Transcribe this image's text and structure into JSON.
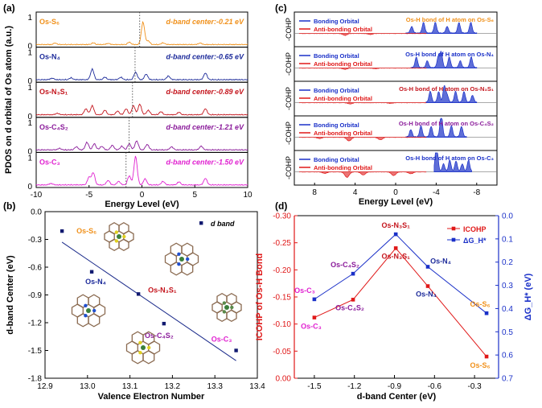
{
  "panel_labels": [
    "(a)",
    "(b)",
    "(c)",
    "(d)"
  ],
  "colors": {
    "os_s6": "#f0901a",
    "os_n4": "#1c2a9a",
    "os_n3s1": "#c4141c",
    "os_c4s2": "#8a1a9a",
    "os_c3": "#e020d0",
    "bonding": "#1a30c8",
    "antibonding": "#e01818",
    "icohp": "#e01818",
    "dgh": "#1a30c8"
  },
  "chart_data": [
    {
      "panel": "(a)",
      "type": "line",
      "ylabel": "PDOS on d orbital of Os atom (a.u.)",
      "xlabel": "Energy Level (eV)",
      "xlim": [
        -10,
        10
      ],
      "x_ticks": [
        "-10",
        "-5",
        "0",
        "5",
        "10"
      ],
      "y_ticks": [
        "0",
        "1"
      ],
      "subplots": [
        {
          "name": "Os-S6",
          "label": "Os-S₆",
          "center_text": "d-band center:-0.21 eV",
          "center": -0.21,
          "color_key": "os_s6",
          "peaks": [
            [
              -8.2,
              0.05
            ],
            [
              -4.6,
              0.06
            ],
            [
              -3.2,
              0.04
            ],
            [
              -1.2,
              0.08
            ],
            [
              0.1,
              0.75
            ],
            [
              0.6,
              0.12
            ],
            [
              2.0,
              0.06
            ],
            [
              5.5,
              0.05
            ]
          ]
        },
        {
          "name": "Os-N4",
          "label": "Os-N₄",
          "center_text": "d-band center:-0.65 eV",
          "center": -0.65,
          "color_key": "os_n4",
          "peaks": [
            [
              -8.5,
              0.05
            ],
            [
              -6.7,
              0.06
            ],
            [
              -4.7,
              0.35
            ],
            [
              -3.5,
              0.08
            ],
            [
              -2.0,
              0.08
            ],
            [
              -0.6,
              0.25
            ],
            [
              0.4,
              0.18
            ],
            [
              2.5,
              0.12
            ],
            [
              6.0,
              0.22
            ]
          ]
        },
        {
          "name": "Os-N3S1",
          "label": "Os-N₃S₁",
          "center_text": "d-band center:-0.89 eV",
          "center": -0.89,
          "color_key": "os_n3s1",
          "peaks": [
            [
              -8.0,
              0.05
            ],
            [
              -5.3,
              0.2
            ],
            [
              -4.7,
              0.3
            ],
            [
              -3.5,
              0.15
            ],
            [
              -2.3,
              0.12
            ],
            [
              -1.5,
              0.2
            ],
            [
              -0.8,
              0.3
            ],
            [
              -0.2,
              0.35
            ],
            [
              0.6,
              0.15
            ],
            [
              1.8,
              0.1
            ],
            [
              3.5,
              0.08
            ],
            [
              6.0,
              0.2
            ]
          ]
        },
        {
          "name": "Os-C4S2",
          "label": "Os-C₄S₂",
          "center_text": "d-band center:-1.21 eV",
          "center": -1.21,
          "color_key": "os_c4s2",
          "peaks": [
            [
              -7.8,
              0.05
            ],
            [
              -6.2,
              0.1
            ],
            [
              -5.2,
              0.25
            ],
            [
              -4.5,
              0.2
            ],
            [
              -3.8,
              0.12
            ],
            [
              -2.8,
              0.15
            ],
            [
              -1.9,
              0.12
            ],
            [
              -1.2,
              0.2
            ],
            [
              -0.5,
              0.3
            ],
            [
              0.5,
              0.18
            ],
            [
              2.8,
              0.1
            ],
            [
              5.6,
              0.12
            ]
          ]
        },
        {
          "name": "Os-C3",
          "label": "Os-C₃",
          "center_text": "d-band center:-1.50 eV",
          "center": -1.5,
          "color_key": "os_c3",
          "peaks": [
            [
              -8.6,
              0.05
            ],
            [
              -5.0,
              0.25
            ],
            [
              -4.6,
              0.4
            ],
            [
              -3.2,
              0.15
            ],
            [
              -2.2,
              0.12
            ],
            [
              -1.2,
              0.3
            ],
            [
              -0.6,
              0.95
            ],
            [
              0.3,
              0.2
            ],
            [
              2.0,
              0.12
            ],
            [
              3.5,
              0.1
            ],
            [
              6.0,
              0.22
            ]
          ]
        }
      ]
    },
    {
      "panel": "(b)",
      "type": "scatter",
      "xlabel": "Valence Electron Number",
      "ylabel": "d-band Center (eV)",
      "xlim": [
        12.9,
        13.4
      ],
      "ylim": [
        -1.8,
        0.0
      ],
      "x_ticks": [
        "12.9",
        "13.0",
        "13.1",
        "13.2",
        "13.3",
        "13.4"
      ],
      "y_ticks": [
        "0.0",
        "-0.3",
        "-0.6",
        "-0.9",
        "-1.2",
        "-1.5",
        "-1.8"
      ],
      "legend": "d band",
      "points": [
        {
          "label": "Os-S₆",
          "x": 12.94,
          "y": -0.21,
          "color_key": "os_s6"
        },
        {
          "label": "Os-N₄",
          "x": 13.01,
          "y": -0.65,
          "color_key": "os_n4"
        },
        {
          "label": "Os-N₃S₁",
          "x": 13.12,
          "y": -0.89,
          "color_key": "os_n3s1"
        },
        {
          "label": "Os-C₄S₂",
          "x": 13.18,
          "y": -1.21,
          "color_key": "os_c4s2"
        },
        {
          "label": "Os-C₃",
          "x": 13.35,
          "y": -1.5,
          "color_key": "os_c3"
        }
      ],
      "fit_line": {
        "x": [
          12.94,
          13.35
        ],
        "y": [
          -0.33,
          -1.61
        ]
      }
    },
    {
      "panel": "(c)",
      "type": "area",
      "xlabel": "Energy Level (eV)",
      "ylabel": "-COHP",
      "xlim": [
        10,
        -10
      ],
      "x_ticks": [
        "8",
        "4",
        "0",
        "-4",
        "-8"
      ],
      "legend": [
        "Bonding Orbital",
        "Anti-bonding Orbital"
      ],
      "subplots": [
        {
          "title": "Os-H bond of H atom on Os-S₆",
          "bond_range": [
            -1.0,
            -8.0
          ],
          "peak_at": 0.0,
          "peak": 0.9,
          "anti": [
            [
              5.0,
              0.15
            ],
            [
              2.5,
              0.08
            ]
          ]
        },
        {
          "title": "Os-H bond of H atom on Os-N₄",
          "bond_range": [
            -1.5,
            -8.0
          ],
          "peak_at": -4.5,
          "peak": 0.8,
          "anti": [
            [
              5.0,
              0.1
            ],
            [
              2.0,
              0.05
            ]
          ]
        },
        {
          "title": "Os-H bond of H atom on Os-N₃S₁",
          "bond_range": [
            -3.0,
            -8.0
          ],
          "peak_at": -4.8,
          "peak": 0.85,
          "anti": [
            [
              4.5,
              0.1
            ],
            [
              0.5,
              0.05
            ]
          ]
        },
        {
          "title": "Os-H bond of H atom on Os-C₄S₂",
          "bond_range": [
            -1.0,
            -7.0
          ],
          "peak_at": -4.5,
          "peak": 0.85,
          "anti": [
            [
              7.5,
              0.1
            ],
            [
              4.6,
              0.3
            ],
            [
              1.5,
              0.2
            ]
          ]
        },
        {
          "title": "Os-H bond of H atom on Os-C₃",
          "bond_range": [
            -3.8,
            -7.5
          ],
          "peak_at": -4.0,
          "peak": 0.95,
          "anti": [
            [
              7.0,
              0.12
            ],
            [
              4.8,
              0.45
            ],
            [
              3.2,
              0.25
            ],
            [
              0.2,
              0.3
            ],
            [
              -1.5,
              0.15
            ]
          ]
        }
      ]
    },
    {
      "panel": "(d)",
      "type": "line",
      "xlabel": "d-band Center (eV)",
      "ylabel_left": "ICOHP of Os-H Bond",
      "ylabel_right": "ΔG_H*",
      "xlim": [
        -1.65,
        -0.12
      ],
      "x_ticks": [
        "-1.5",
        "-1.2",
        "-0.9",
        "-0.6",
        "-0.3"
      ],
      "y_left_ticks": [
        "-0.30",
        "-0.25",
        "-0.20",
        "-0.15",
        "-0.10",
        "-0.05",
        "0.00"
      ],
      "y_right_ticks": [
        "0.0",
        "0.1",
        "0.2",
        "0.3",
        "0.4",
        "0.5",
        "0.6",
        "0.7"
      ],
      "y_left_lim": [
        -0.3,
        0.0
      ],
      "y_right_lim": [
        0.0,
        0.7
      ],
      "categories": [
        "Os-C₃",
        "Os-C₄S₂",
        "Os-N₃S₁",
        "Os-N₄",
        "Os-S₆"
      ],
      "x": [
        -1.5,
        -1.21,
        -0.89,
        -0.65,
        -0.21
      ],
      "series": [
        {
          "name": "ICOHP",
          "axis": "left",
          "color_key": "icohp",
          "values": [
            -0.112,
            -0.145,
            -0.24,
            -0.17,
            -0.04
          ]
        },
        {
          "name": "ΔG_H*",
          "axis": "right",
          "color_key": "dgh",
          "values": [
            0.36,
            0.25,
            0.08,
            0.22,
            0.42
          ]
        }
      ]
    }
  ]
}
